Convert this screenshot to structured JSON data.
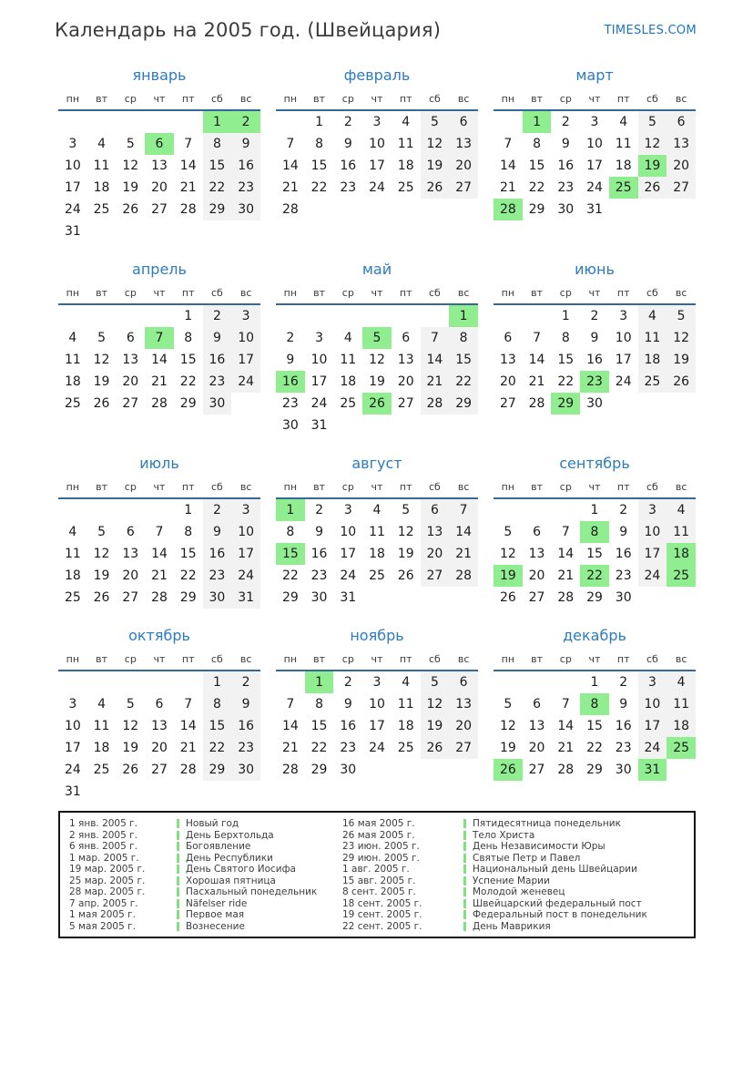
{
  "page": {
    "title": "Календарь на 2005 год. (Швейцария)",
    "site_link": "TIMESLES.COM"
  },
  "colors": {
    "holiday_green": "#90ee90",
    "weekend_gray": "#f2f2f2",
    "rule_blue": "#336a98",
    "month_title_blue": "#2b7cc1",
    "link_blue": "#1a73c4"
  },
  "weekdays": [
    "пн",
    "вт",
    "ср",
    "чт",
    "пт",
    "сб",
    "вс"
  ],
  "months": [
    {
      "name": "январь",
      "start": 5,
      "days": 31,
      "holidays": [
        1,
        2,
        6
      ]
    },
    {
      "name": "февраль",
      "start": 1,
      "days": 28,
      "holidays": []
    },
    {
      "name": "март",
      "start": 1,
      "days": 31,
      "holidays": [
        1,
        19,
        25,
        28
      ]
    },
    {
      "name": "апрель",
      "start": 4,
      "days": 30,
      "holidays": [
        7
      ]
    },
    {
      "name": "май",
      "start": 6,
      "days": 31,
      "holidays": [
        1,
        5,
        16,
        26
      ]
    },
    {
      "name": "июнь",
      "start": 2,
      "days": 30,
      "holidays": [
        23,
        29
      ]
    },
    {
      "name": "июль",
      "start": 4,
      "days": 31,
      "holidays": []
    },
    {
      "name": "август",
      "start": 0,
      "days": 31,
      "holidays": [
        1,
        15
      ]
    },
    {
      "name": "сентябрь",
      "start": 3,
      "days": 30,
      "holidays": [
        8,
        18,
        19,
        22,
        25
      ]
    },
    {
      "name": "октябрь",
      "start": 5,
      "days": 31,
      "holidays": []
    },
    {
      "name": "ноябрь",
      "start": 1,
      "days": 30,
      "holidays": [
        1
      ]
    },
    {
      "name": "декабрь",
      "start": 3,
      "days": 31,
      "holidays": [
        8,
        25,
        26,
        31
      ]
    }
  ],
  "legend": {
    "left": [
      {
        "date": "1 янв. 2005 г.",
        "name": "Новый год"
      },
      {
        "date": "2 янв. 2005 г.",
        "name": "День Берхтольда"
      },
      {
        "date": "6 янв. 2005 г.",
        "name": "Богоявление"
      },
      {
        "date": "1 мар. 2005 г.",
        "name": "День Республики"
      },
      {
        "date": "19 мар. 2005 г.",
        "name": "День Святого Иосифа"
      },
      {
        "date": "25 мар. 2005 г.",
        "name": "Хорошая пятница"
      },
      {
        "date": "28 мар. 2005 г.",
        "name": "Пасхальный понедельник"
      },
      {
        "date": "7 апр. 2005 г.",
        "name": "Näfelser ride"
      },
      {
        "date": "1 мая 2005 г.",
        "name": "Первое мая"
      },
      {
        "date": "5 мая 2005 г.",
        "name": "Вознесение"
      }
    ],
    "right": [
      {
        "date": "16 мая 2005 г.",
        "name": "Пятидесятница понедельник"
      },
      {
        "date": "26 мая 2005 г.",
        "name": "Тело Христа"
      },
      {
        "date": "23 июн. 2005 г.",
        "name": "День Независимости Юры"
      },
      {
        "date": "29 июн. 2005 г.",
        "name": "Святые Петр и Павел"
      },
      {
        "date": "1 авг. 2005 г.",
        "name": "Национальный день Швейцарии"
      },
      {
        "date": "15 авг. 2005 г.",
        "name": "Успение Марии"
      },
      {
        "date": "8 сент. 2005 г.",
        "name": "Молодой женевец"
      },
      {
        "date": "18 сент. 2005 г.",
        "name": "Швейцарский федеральный пост"
      },
      {
        "date": "19 сент. 2005 г.",
        "name": "Федеральный пост в понедельник"
      },
      {
        "date": "22 сент. 2005 г.",
        "name": "День Маврикия"
      }
    ]
  }
}
